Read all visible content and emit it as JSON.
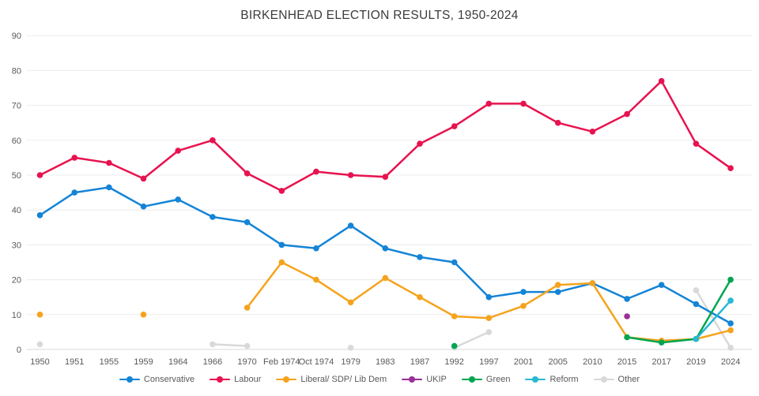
{
  "title": "BIRKENHEAD ELECTION RESULTS, 1950-2024",
  "colors": {
    "background": "#ffffff",
    "grid_line": "#ececec",
    "baseline": "#d9d9d9",
    "axis_text": "#595959",
    "title_text": "#3b3b3b"
  },
  "chart_data": {
    "type": "line",
    "title": "BIRKENHEAD ELECTION RESULTS, 1950-2024",
    "xlabel": "",
    "ylabel": "",
    "ylim": [
      0,
      90
    ],
    "y_ticks": [
      0,
      10,
      20,
      30,
      40,
      50,
      60,
      70,
      80,
      90
    ],
    "grid": "horizontal",
    "legend_position": "bottom",
    "x_categories": [
      "1950",
      "1951",
      "1955",
      "1959",
      "1964",
      "1966",
      "1970",
      "Feb 1974",
      "Oct 1974",
      "1979",
      "1983",
      "1987",
      "1992",
      "1997",
      "2001",
      "2005",
      "2010",
      "2015",
      "2017",
      "2019",
      "2024"
    ],
    "series": [
      {
        "name": "Conservative",
        "color": "#1484D6",
        "values": [
          38.5,
          45,
          46.5,
          41,
          43,
          38,
          36.5,
          30,
          29,
          35.5,
          29,
          26.5,
          25,
          15,
          16.5,
          16.5,
          19,
          14.5,
          18.5,
          13,
          7.5
        ]
      },
      {
        "name": "Labour",
        "color": "#E8124F",
        "values": [
          50,
          55,
          53.5,
          49,
          57,
          60,
          50.5,
          45.5,
          51,
          50,
          49.5,
          59,
          64,
          70.5,
          70.5,
          65,
          62.5,
          67.5,
          77,
          59,
          52
        ]
      },
      {
        "name": "Liberal/ SDP/ Lib Dem",
        "color": "#F5A31D",
        "values": [
          10,
          null,
          null,
          10,
          null,
          null,
          12,
          25,
          20,
          13.5,
          20.5,
          15,
          9.5,
          9,
          12.5,
          18.5,
          19,
          3.5,
          2.5,
          3,
          5.5
        ]
      },
      {
        "name": "UKIP",
        "color": "#993097",
        "values": [
          null,
          null,
          null,
          null,
          null,
          null,
          null,
          null,
          null,
          null,
          null,
          null,
          null,
          null,
          null,
          null,
          null,
          9.5,
          null,
          null,
          null
        ]
      },
      {
        "name": "Green",
        "color": "#00A550",
        "values": [
          null,
          null,
          null,
          null,
          null,
          null,
          null,
          null,
          null,
          null,
          null,
          null,
          1,
          null,
          null,
          null,
          null,
          3.5,
          2,
          3,
          20
        ]
      },
      {
        "name": "Reform",
        "color": "#27B8D4",
        "values": [
          null,
          null,
          null,
          null,
          null,
          null,
          null,
          null,
          null,
          null,
          null,
          null,
          null,
          null,
          null,
          null,
          null,
          null,
          null,
          3,
          14
        ]
      },
      {
        "name": "Other",
        "color": "#D9D9D9",
        "values": [
          1.5,
          null,
          null,
          null,
          null,
          1.5,
          1,
          null,
          null,
          0.5,
          null,
          null,
          0.5,
          5,
          null,
          null,
          null,
          null,
          null,
          17,
          0.5
        ]
      }
    ]
  }
}
